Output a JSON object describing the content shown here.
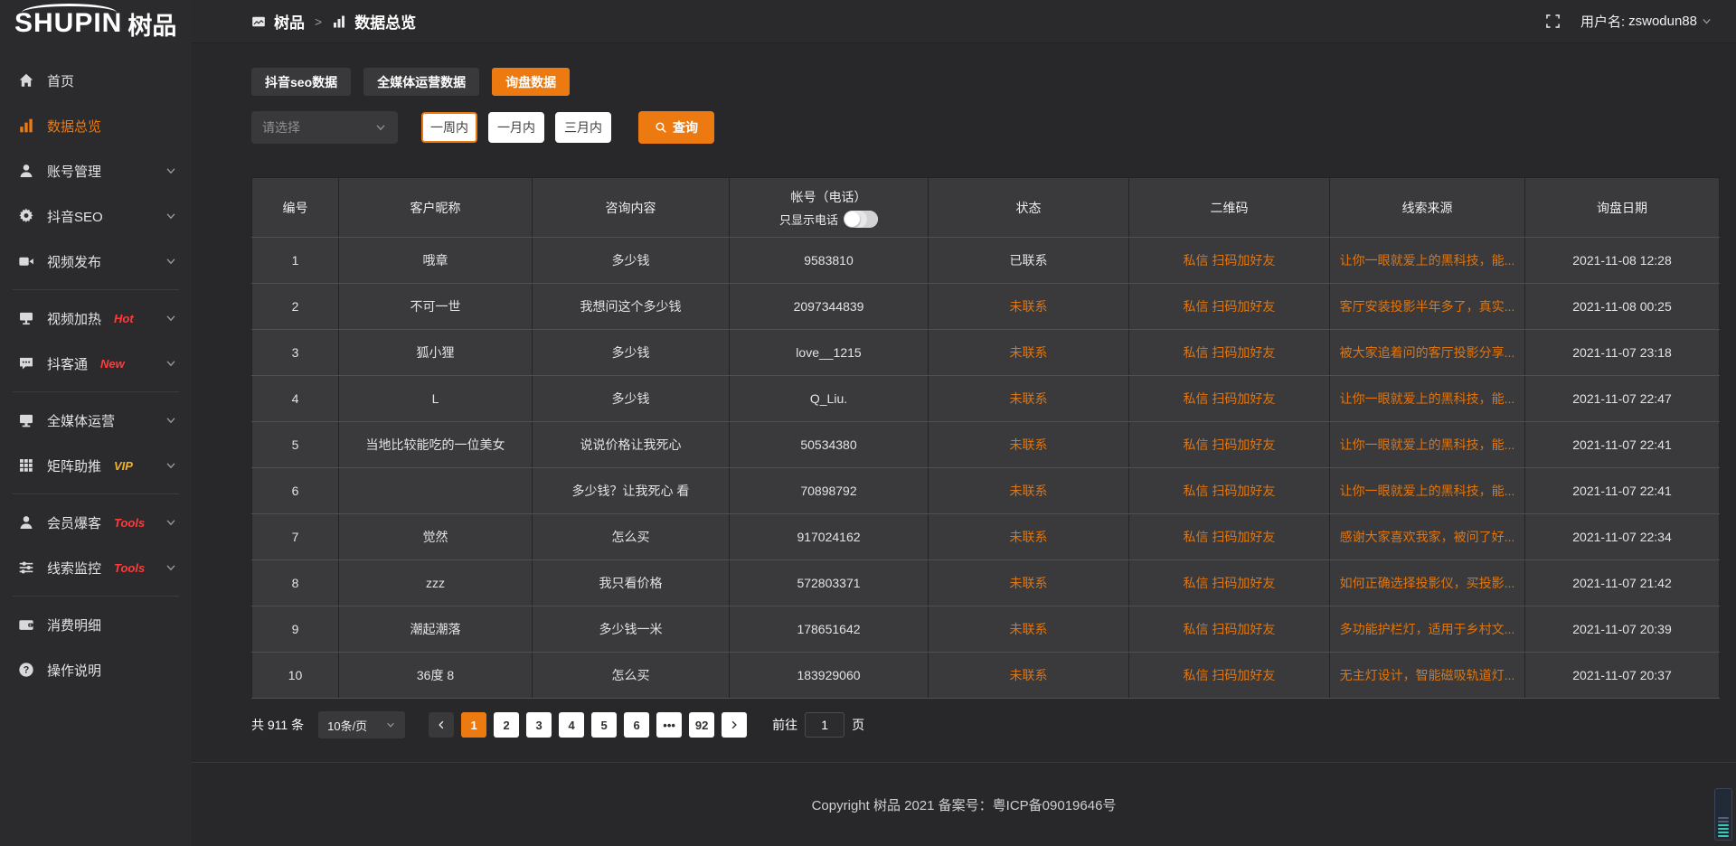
{
  "app": {
    "logo_en": "SHUPIN",
    "logo_cn": "树品"
  },
  "colors": {
    "accent_orange": "#ec7a10",
    "table_link_orange": "#e0750e",
    "badge_red": "#ff3b3b",
    "badge_gold": "#efb02e",
    "widget_teal": "#3ac9b0"
  },
  "header": {
    "breadcrumb": {
      "root_label": "树品",
      "separator": ">",
      "current_label": "数据总览"
    },
    "user_label": "用户名:",
    "username": "zswodun88"
  },
  "sidebar": {
    "items": [
      {
        "id": "home",
        "icon": "home-icon",
        "label": "首页",
        "active": false,
        "chevron": false
      },
      {
        "id": "data-overview",
        "icon": "bar-chart-icon",
        "label": "数据总览",
        "active": true,
        "chevron": false
      },
      {
        "id": "account-manage",
        "icon": "user-icon",
        "label": "账号管理",
        "chevron": true
      },
      {
        "id": "douyin-seo",
        "icon": "gear-icon",
        "label": "抖音SEO",
        "chevron": true
      },
      {
        "id": "video-publish",
        "icon": "video-camera-icon",
        "label": "视频发布",
        "chevron": true,
        "divider_after": true
      },
      {
        "id": "video-heat",
        "icon": "cast-icon",
        "label": "视频加热",
        "badge": "Hot",
        "badge_color": "red",
        "chevron": true
      },
      {
        "id": "douketong",
        "icon": "chat-icon",
        "label": "抖客通",
        "badge": "New",
        "badge_color": "red",
        "chevron": true,
        "divider_after": true
      },
      {
        "id": "media-operation",
        "icon": "monitor-icon",
        "label": "全媒体运营",
        "chevron": true
      },
      {
        "id": "matrix-boost",
        "icon": "grid-icon",
        "label": "矩阵助推",
        "badge": "VIP",
        "badge_color": "gold",
        "chevron": true,
        "divider_after": true
      },
      {
        "id": "member-baoke",
        "icon": "user-icon",
        "label": "会员爆客",
        "badge": "Tools",
        "badge_color": "red",
        "chevron": true
      },
      {
        "id": "clue-monitor",
        "icon": "sliders-icon",
        "label": "线索监控",
        "badge": "Tools",
        "badge_color": "red",
        "chevron": true,
        "divider_after": true
      },
      {
        "id": "consume-detail",
        "icon": "wallet-icon",
        "label": "消费明细",
        "chevron": false
      },
      {
        "id": "help",
        "icon": "question-icon",
        "label": "操作说明",
        "chevron": false
      }
    ]
  },
  "tabs": [
    {
      "id": "douyin-seo-data",
      "label": "抖音seo数据",
      "active": false
    },
    {
      "id": "media-operation-data",
      "label": "全媒体运营数据",
      "active": false
    },
    {
      "id": "inquiry-data",
      "label": "询盘数据",
      "active": true
    }
  ],
  "filters": {
    "select_placeholder": "请选择",
    "date_ranges": [
      {
        "label": "一周内",
        "active": true
      },
      {
        "label": "一月内",
        "active": false
      },
      {
        "label": "三月内",
        "active": false
      }
    ],
    "search_label": "查询"
  },
  "table": {
    "headers": [
      "编号",
      "客户昵称",
      "咨询内容",
      "帐号（电话）",
      "状态",
      "二维码",
      "线索来源",
      "询盘日期"
    ],
    "toggle_label": "只显示电话",
    "rows": [
      {
        "no": "1",
        "nickname": "哦章",
        "content": "多少钱",
        "account": "9583810",
        "status": "已联系",
        "contacted": true,
        "qrcode": "私信 扫码加好友",
        "source": "让你一眼就爱上的黑科技，能...",
        "date": "2021-11-08 12:28"
      },
      {
        "no": "2",
        "nickname": "不可一世",
        "content": "我想问这个多少钱",
        "account": "2097344839",
        "status": "未联系",
        "contacted": false,
        "qrcode": "私信 扫码加好友",
        "source": "客厅安装投影半年多了，真实...",
        "date": "2021-11-08 00:25"
      },
      {
        "no": "3",
        "nickname": "狐小狸",
        "content": "多少钱",
        "account": "love__1215",
        "status": "未联系",
        "contacted": false,
        "qrcode": "私信 扫码加好友",
        "source": "被大家追着问的客厅投影分享...",
        "date": "2021-11-07 23:18"
      },
      {
        "no": "4",
        "nickname": "L",
        "content": "多少钱",
        "account": "Q_Liu.",
        "status": "未联系",
        "contacted": false,
        "qrcode": "私信 扫码加好友",
        "source": "让你一眼就爱上的黑科技，能...",
        "date": "2021-11-07 22:47"
      },
      {
        "no": "5",
        "nickname": "当地比较能吃的一位美女",
        "content": "说说价格让我死心",
        "account": "50534380",
        "status": "未联系",
        "contacted": false,
        "qrcode": "私信 扫码加好友",
        "source": "让你一眼就爱上的黑科技，能...",
        "date": "2021-11-07 22:41"
      },
      {
        "no": "6",
        "nickname": "",
        "content": "多少钱？让我死心 看",
        "account": "70898792",
        "status": "未联系",
        "contacted": false,
        "qrcode": "私信 扫码加好友",
        "source": "让你一眼就爱上的黑科技，能...",
        "date": "2021-11-07 22:41"
      },
      {
        "no": "7",
        "nickname": "觉然",
        "content": "怎么买",
        "account": "917024162",
        "status": "未联系",
        "contacted": false,
        "qrcode": "私信 扫码加好友",
        "source": "感谢大家喜欢我家，被问了好...",
        "date": "2021-11-07 22:34"
      },
      {
        "no": "8",
        "nickname": "zzz",
        "content": "我只看价格",
        "account": "572803371",
        "status": "未联系",
        "contacted": false,
        "qrcode": "私信 扫码加好友",
        "source": "如何正确选择投影仪，买投影...",
        "date": "2021-11-07 21:42"
      },
      {
        "no": "9",
        "nickname": "潮起潮落",
        "content": "多少钱一米",
        "account": "178651642",
        "status": "未联系",
        "contacted": false,
        "qrcode": "私信 扫码加好友",
        "source": "多功能护栏灯，适用于乡村文...",
        "date": "2021-11-07 20:39"
      },
      {
        "no": "10",
        "nickname": "36度 8",
        "content": "怎么买",
        "account": "183929060",
        "status": "未联系",
        "contacted": false,
        "qrcode": "私信 扫码加好友",
        "source": "无主灯设计，智能磁吸轨道灯...",
        "date": "2021-11-07 20:37"
      }
    ]
  },
  "pagination": {
    "total_label": "共 911 条",
    "page_size_label": "10条/页",
    "pages": [
      "1",
      "2",
      "3",
      "4",
      "5",
      "6",
      "•••",
      "92"
    ],
    "active_page": "1",
    "goto_label": "前往",
    "goto_value": "1",
    "page_unit_label": "页"
  },
  "footer": {
    "copyright": "Copyright 树品 2021 备案号：粤ICP备09019646号"
  }
}
